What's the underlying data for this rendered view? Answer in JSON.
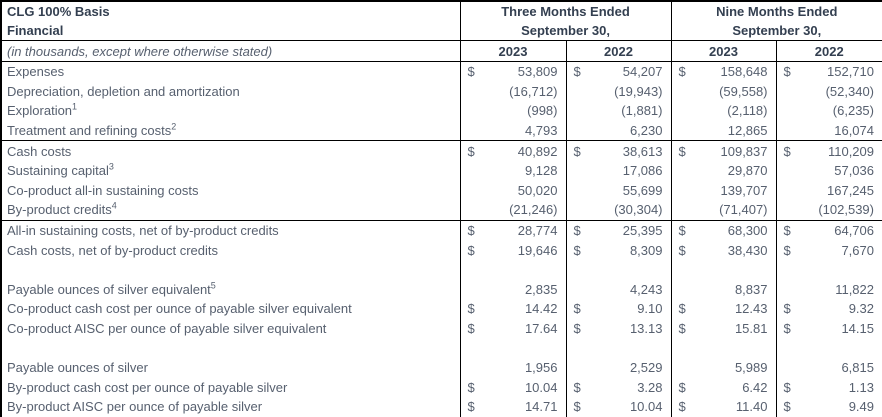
{
  "title": {
    "line1": "CLG 100% Basis",
    "line2": "Financial",
    "subtitle": "(in thousands, except where otherwise stated)"
  },
  "column_groups": [
    {
      "label": "Three Months Ended",
      "sublabel": "September 30,"
    },
    {
      "label": "Nine Months Ended",
      "sublabel": "September 30,"
    }
  ],
  "year_columns": [
    "2023",
    "2022",
    "2023",
    "2022"
  ],
  "currency_symbol": "$",
  "colors": {
    "header_text": "#333F50",
    "body_text": "#57606F",
    "border": "#000000",
    "background": "#FFFFFF"
  },
  "chart_data": {
    "type": "table",
    "title": "CLG 100% Basis Financial (in thousands, except where otherwise stated)",
    "columns": [
      "Three Months Ended September 30, 2023",
      "Three Months Ended September 30, 2022",
      "Nine Months Ended September 30, 2023",
      "Nine Months Ended September 30, 2022"
    ],
    "rows": [
      {
        "label": "Expenses",
        "sup": "",
        "dollar": true,
        "rule_below": false,
        "blank": false,
        "values": [
          "53,809",
          "54,207",
          "158,648",
          "152,710"
        ]
      },
      {
        "label": "Depreciation, depletion and amortization",
        "sup": "",
        "dollar": false,
        "rule_below": false,
        "blank": false,
        "values": [
          "(16,712)",
          "(19,943)",
          "(59,558)",
          "(52,340)"
        ]
      },
      {
        "label": "Exploration",
        "sup": "1",
        "dollar": false,
        "rule_below": false,
        "blank": false,
        "values": [
          "(998)",
          "(1,881)",
          "(2,118)",
          "(6,235)"
        ]
      },
      {
        "label": "Treatment and refining costs",
        "sup": "2",
        "dollar": false,
        "rule_below": true,
        "blank": false,
        "values": [
          "4,793",
          "6,230",
          "12,865",
          "16,074"
        ]
      },
      {
        "label": "Cash costs",
        "sup": "",
        "dollar": true,
        "rule_below": false,
        "blank": false,
        "values": [
          "40,892",
          "38,613",
          "109,837",
          "110,209"
        ]
      },
      {
        "label": "Sustaining capital",
        "sup": "3",
        "dollar": false,
        "rule_below": false,
        "blank": false,
        "values": [
          "9,128",
          "17,086",
          "29,870",
          "57,036"
        ]
      },
      {
        "label": "Co-product all-in sustaining costs",
        "sup": "",
        "dollar": false,
        "rule_below": false,
        "blank": false,
        "values": [
          "50,020",
          "55,699",
          "139,707",
          "167,245"
        ]
      },
      {
        "label": "By-product credits",
        "sup": "4",
        "dollar": false,
        "rule_below": true,
        "blank": false,
        "values": [
          "(21,246)",
          "(30,304)",
          "(71,407)",
          "(102,539)"
        ]
      },
      {
        "label": "All-in sustaining costs, net of by-product credits",
        "sup": "",
        "dollar": true,
        "rule_below": false,
        "blank": false,
        "values": [
          "28,774",
          "25,395",
          "68,300",
          "64,706"
        ]
      },
      {
        "label": "Cash costs, net of by-product credits",
        "sup": "",
        "dollar": true,
        "rule_below": false,
        "blank": false,
        "values": [
          "19,646",
          "8,309",
          "38,430",
          "7,670"
        ]
      },
      {
        "label": "",
        "sup": "",
        "dollar": false,
        "rule_below": false,
        "blank": true,
        "values": [
          "",
          "",
          "",
          ""
        ]
      },
      {
        "label": "Payable ounces of silver equivalent",
        "sup": "5",
        "dollar": false,
        "rule_below": false,
        "blank": false,
        "values": [
          "2,835",
          "4,243",
          "8,837",
          "11,822"
        ]
      },
      {
        "label": "Co-product cash cost per ounce of payable silver equivalent",
        "sup": "",
        "dollar": true,
        "rule_below": false,
        "blank": false,
        "values": [
          "14.42",
          "9.10",
          "12.43",
          "9.32"
        ]
      },
      {
        "label": "Co-product AISC per ounce of payable silver equivalent",
        "sup": "",
        "dollar": true,
        "rule_below": false,
        "blank": false,
        "values": [
          "17.64",
          "13.13",
          "15.81",
          "14.15"
        ]
      },
      {
        "label": "",
        "sup": "",
        "dollar": false,
        "rule_below": false,
        "blank": true,
        "values": [
          "",
          "",
          "",
          ""
        ]
      },
      {
        "label": "Payable ounces of silver",
        "sup": "",
        "dollar": false,
        "rule_below": false,
        "blank": false,
        "values": [
          "1,956",
          "2,529",
          "5,989",
          "6,815"
        ]
      },
      {
        "label": "By-product cash cost per ounce of payable silver",
        "sup": "",
        "dollar": true,
        "rule_below": false,
        "blank": false,
        "values": [
          "10.04",
          "3.28",
          "6.42",
          "1.13"
        ]
      },
      {
        "label": "By-product AISC per ounce of payable silver",
        "sup": "",
        "dollar": true,
        "rule_below": false,
        "blank": false,
        "values": [
          "14.71",
          "10.04",
          "11.40",
          "9.49"
        ]
      }
    ]
  }
}
